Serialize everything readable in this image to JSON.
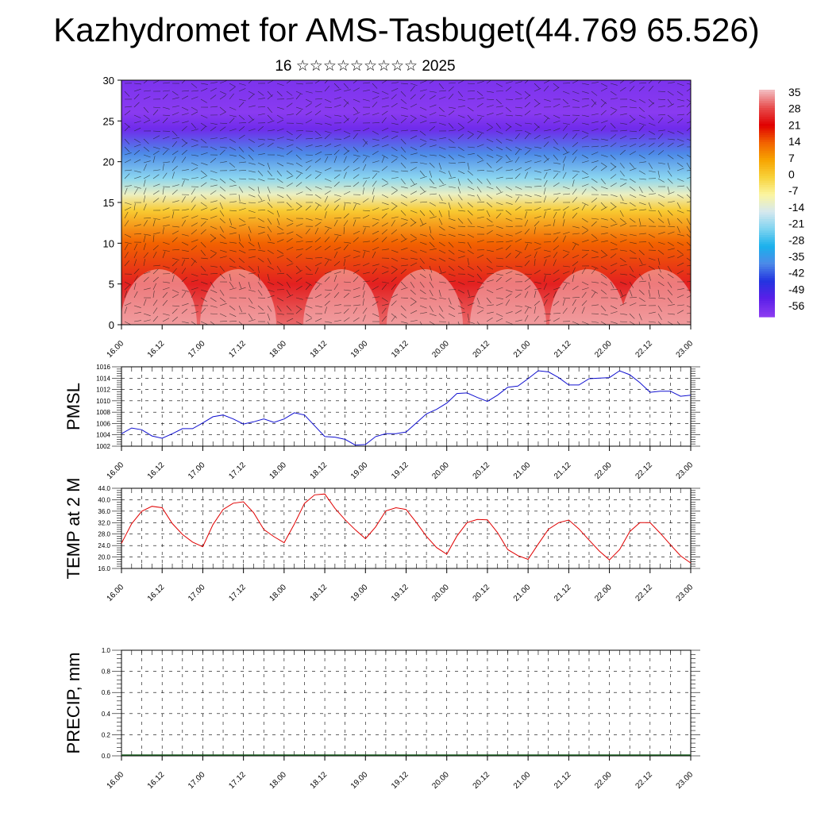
{
  "title": "Kazhydromet for AMS-Tasbuget(44.769 65.526)",
  "subtitle": "16 ☆☆☆☆☆☆☆☆☆ 2025",
  "x_tick_labels": [
    "16.00",
    "16.12",
    "17.00",
    "17.12",
    "18.00",
    "18.12",
    "19.00",
    "19.12",
    "20.00",
    "20.12",
    "21.00",
    "21.12",
    "22.00",
    "22.12",
    "23.00"
  ],
  "chart_data": [
    {
      "type": "heatmap",
      "xlabel": "",
      "ylabel": "",
      "ylim": [
        0,
        30
      ],
      "y_ticks": [
        0,
        5,
        10,
        15,
        20,
        25,
        30
      ],
      "colorbar_labels": [
        "35",
        "28",
        "21",
        "14",
        "7",
        "0",
        "-7",
        "-14",
        "-21",
        "-28",
        "-35",
        "-42",
        "-49",
        "-56"
      ],
      "colorbar_colors": [
        "#f2b9bd",
        "#e74b4b",
        "#e00000",
        "#f26200",
        "#f7a400",
        "#f8d23a",
        "#fbf5a0",
        "#d6e8ef",
        "#7ed3f0",
        "#1ab1ec",
        "#4d8ae8",
        "#2334e0",
        "#5a1fe8",
        "#8a3bf0"
      ],
      "profile": [
        {
          "height": 0,
          "temp": 30
        },
        {
          "height": 5,
          "temp": 24
        },
        {
          "height": 10,
          "temp": 14
        },
        {
          "height": 14,
          "temp": 1
        },
        {
          "height": 16,
          "temp": -10
        },
        {
          "height": 18,
          "temp": -20
        },
        {
          "height": 21,
          "temp": -35
        },
        {
          "height": 24,
          "temp": -52
        },
        {
          "height": 26,
          "temp": -56
        },
        {
          "height": 30,
          "temp": -54
        }
      ]
    },
    {
      "type": "line",
      "ylabel": "PMSL",
      "ylim": [
        1002,
        1016
      ],
      "y_ticks": [
        1002,
        1004,
        1006,
        1008,
        1010,
        1012,
        1014,
        1016
      ],
      "color": "#1010d0",
      "x": [
        0,
        1,
        2,
        3,
        4,
        5,
        6,
        7,
        8,
        9,
        10,
        11,
        12,
        13,
        14,
        15,
        16,
        17,
        18,
        19,
        20,
        21,
        22,
        23,
        24,
        25,
        26,
        27,
        28,
        29,
        30,
        31,
        32,
        33,
        34,
        35,
        36,
        37,
        38,
        39,
        40,
        41,
        42,
        43,
        44,
        45,
        46,
        47,
        48,
        49,
        50,
        51,
        52,
        53,
        54,
        55,
        56
      ],
      "values": [
        1004.2,
        1005.2,
        1004.9,
        1003.8,
        1003.4,
        1004.2,
        1005.1,
        1005.1,
        1006.1,
        1007.2,
        1007.5,
        1006.8,
        1005.9,
        1006.3,
        1006.8,
        1006.2,
        1006.8,
        1007.9,
        1007.5,
        1005.6,
        1003.7,
        1003.6,
        1003.2,
        1002.2,
        1002.3,
        1003.7,
        1004.2,
        1004.2,
        1004.5,
        1006.1,
        1007.7,
        1008.5,
        1009.6,
        1011.3,
        1011.4,
        1010.6,
        1009.9,
        1011.0,
        1012.4,
        1012.6,
        1013.9,
        1015.3,
        1015.1,
        1014.1,
        1012.8,
        1012.8,
        1013.9,
        1014.0,
        1014.1,
        1015.3,
        1014.6,
        1013.2,
        1011.5,
        1011.7,
        1011.7,
        1010.8,
        1011.0
      ]
    },
    {
      "type": "line",
      "ylabel": "TEMP at 2 M",
      "ylim": [
        16,
        44
      ],
      "y_ticks": [
        16,
        20,
        24,
        28,
        32,
        36,
        40,
        44
      ],
      "y_tick_labels": [
        "16.0",
        "20.0",
        "24.0",
        "28.0",
        "32.0",
        "36.0",
        "40.0",
        "44.0"
      ],
      "color": "#e00000",
      "x": [
        0,
        1,
        2,
        3,
        4,
        5,
        6,
        7,
        8,
        9,
        10,
        11,
        12,
        13,
        14,
        15,
        16,
        17,
        18,
        19,
        20,
        21,
        22,
        23,
        24,
        25,
        26,
        27,
        28,
        29,
        30,
        31,
        32,
        33,
        34,
        35,
        36,
        37,
        38,
        39,
        40,
        41,
        42,
        43,
        44,
        45,
        46,
        47,
        48,
        49,
        50,
        51,
        52,
        53,
        54,
        55,
        56
      ],
      "values": [
        24.8,
        31.6,
        36.0,
        37.7,
        37.2,
        31.7,
        27.9,
        25.2,
        23.6,
        31.3,
        36.6,
        38.8,
        39.3,
        35.5,
        29.6,
        27.1,
        25.0,
        31.5,
        38.7,
        41.7,
        42.0,
        37.0,
        33.0,
        29.5,
        26.4,
        30.5,
        36.1,
        37.2,
        36.6,
        32.1,
        27.2,
        23.3,
        21.0,
        27.3,
        32.0,
        33.1,
        33.0,
        28.5,
        22.6,
        20.5,
        19.2,
        24.5,
        29.7,
        32.0,
        32.9,
        29.8,
        25.9,
        22.1,
        19.0,
        22.6,
        28.9,
        32.0,
        32.0,
        28.3,
        24.3,
        20.4,
        17.9
      ]
    },
    {
      "type": "bar",
      "ylabel": "PRECIP, mm",
      "ylim": [
        0,
        1
      ],
      "y_ticks": [
        0,
        0.2,
        0.4,
        0.6,
        0.8,
        1.0
      ],
      "y_tick_labels": [
        "0.0",
        "0.2",
        "0.4",
        "0.6",
        "0.8",
        "1.0"
      ],
      "values": [
        0,
        0,
        0,
        0,
        0,
        0,
        0,
        0,
        0,
        0,
        0,
        0,
        0,
        0,
        0,
        0,
        0,
        0,
        0,
        0,
        0,
        0,
        0,
        0,
        0,
        0,
        0,
        0,
        0,
        0,
        0,
        0,
        0,
        0,
        0,
        0,
        0,
        0,
        0,
        0,
        0,
        0,
        0,
        0,
        0,
        0,
        0,
        0,
        0,
        0,
        0,
        0,
        0,
        0,
        0,
        0,
        0
      ]
    }
  ]
}
